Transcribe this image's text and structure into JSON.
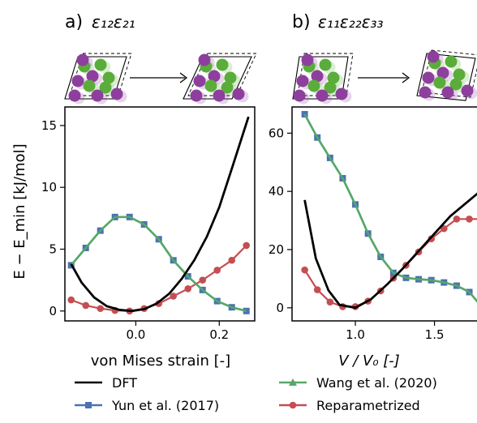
{
  "panels": [
    {
      "title_prefix": "a)",
      "title_math": "ε₁₂ε₂₁",
      "xlabel": "von Mises strain [-]"
    },
    {
      "title_prefix": "b)",
      "title_math": "ε₁₁ε₂₂ε₃₃",
      "xlabel": "V / V₀ [-]"
    }
  ],
  "ylabel": "E − E_min [kJ/mol]",
  "legend": {
    "items": [
      {
        "label": "DFT",
        "color": "#000000",
        "marker": "none"
      },
      {
        "label": "Yun et al. (2017)",
        "color": "#4c72b0",
        "marker": "square"
      },
      {
        "label": "Wang et al. (2020)",
        "color": "#55a868",
        "marker": "triangle"
      },
      {
        "label": "Reparametrized",
        "color": "#c44e52",
        "marker": "circle"
      }
    ]
  },
  "colors": {
    "dft": "#000000",
    "yun": "#4c72b0",
    "wang": "#55a868",
    "repar": "#c44e52",
    "atom_green": "#5aad3a",
    "atom_purple": "#8e3f9e"
  },
  "chart_data": [
    {
      "type": "line",
      "title": "a) ε12ε21",
      "xlabel": "von Mises strain [-]",
      "ylabel": "E − E_min [kJ/mol]",
      "xlim": [
        -0.17,
        0.285
      ],
      "ylim": [
        -0.8,
        16.5
      ],
      "xticks": [
        0.0,
        0.2
      ],
      "yticks": [
        0,
        5,
        10,
        15
      ],
      "grid": false,
      "series": [
        {
          "name": "DFT",
          "x": [
            -0.155,
            -0.13,
            -0.1,
            -0.07,
            -0.04,
            -0.01,
            0.02,
            0.05,
            0.08,
            0.11,
            0.14,
            0.17,
            0.2,
            0.23,
            0.27
          ],
          "y": [
            3.8,
            2.3,
            1.1,
            0.4,
            0.1,
            0.0,
            0.15,
            0.6,
            1.4,
            2.6,
            4.1,
            6.0,
            8.4,
            11.5,
            15.7
          ]
        },
        {
          "name": "Yun et al. (2017)",
          "x": [
            -0.155,
            -0.12,
            -0.085,
            -0.05,
            -0.015,
            0.02,
            0.055,
            0.09,
            0.125,
            0.16,
            0.195,
            0.23,
            0.265
          ],
          "y": [
            3.7,
            5.1,
            6.5,
            7.6,
            7.6,
            7.0,
            5.8,
            4.1,
            2.8,
            1.7,
            0.8,
            0.3,
            0.0
          ]
        },
        {
          "name": "Wang et al. (2020)",
          "x": [
            -0.155,
            -0.12,
            -0.085,
            -0.05,
            -0.015,
            0.02,
            0.055,
            0.09,
            0.125,
            0.16,
            0.195,
            0.23,
            0.265
          ],
          "y": [
            3.7,
            5.1,
            6.5,
            7.6,
            7.6,
            7.0,
            5.8,
            4.1,
            2.8,
            1.7,
            0.8,
            0.3,
            0.0
          ]
        },
        {
          "name": "Reparametrized",
          "x": [
            -0.155,
            -0.12,
            -0.085,
            -0.05,
            -0.015,
            0.02,
            0.055,
            0.09,
            0.125,
            0.16,
            0.195,
            0.23,
            0.265
          ],
          "y": [
            0.9,
            0.45,
            0.2,
            0.05,
            0.0,
            0.2,
            0.6,
            1.2,
            1.8,
            2.5,
            3.3,
            4.1,
            5.3
          ]
        }
      ]
    },
    {
      "type": "line",
      "title": "b) ε11ε22ε33",
      "xlabel": "V / V₀ [-]",
      "ylabel": "",
      "xlim": [
        0.6,
        1.83
      ],
      "ylim": [
        -4.5,
        69
      ],
      "xticks": [
        1.0,
        1.5
      ],
      "yticks": [
        0,
        20,
        40,
        60
      ],
      "grid": false,
      "series": [
        {
          "name": "DFT",
          "x": [
            0.68,
            0.75,
            0.83,
            0.9,
            1.0,
            1.1,
            1.2,
            1.3,
            1.4,
            1.5,
            1.6,
            1.7,
            1.81
          ],
          "y": [
            37,
            17,
            6,
            1,
            0,
            3,
            8,
            13.5,
            19.5,
            25.5,
            31.5,
            36,
            41
          ]
        },
        {
          "name": "Yun et al. (2017)",
          "x": [
            0.68,
            0.76,
            0.84,
            0.92,
            1.0,
            1.08,
            1.16,
            1.24,
            1.32,
            1.4,
            1.48,
            1.56,
            1.64,
            1.72,
            1.8
          ],
          "y": [
            66.5,
            58.5,
            51.5,
            44.5,
            35.5,
            25.5,
            17.5,
            12,
            10.3,
            9.8,
            9.5,
            8.7,
            7.6,
            5.4,
            0.3
          ]
        },
        {
          "name": "Wang et al. (2020)",
          "x": [
            0.68,
            0.76,
            0.84,
            0.92,
            1.0,
            1.08,
            1.16,
            1.24,
            1.32,
            1.4,
            1.48,
            1.56,
            1.64,
            1.72,
            1.8
          ],
          "y": [
            66.5,
            58.5,
            51.5,
            44.5,
            35.5,
            25.5,
            17.5,
            12,
            10.3,
            9.8,
            9.5,
            8.7,
            7.6,
            5.4,
            0.3
          ]
        },
        {
          "name": "Reparametrized",
          "x": [
            0.68,
            0.76,
            0.84,
            0.92,
            1.0,
            1.08,
            1.16,
            1.24,
            1.32,
            1.4,
            1.48,
            1.56,
            1.64,
            1.72,
            1.8
          ],
          "y": [
            13,
            6.2,
            2,
            0.4,
            0.4,
            2.3,
            5.8,
            10.2,
            14.6,
            19.2,
            23.7,
            27.2,
            30.5,
            30.5,
            30.5
          ]
        }
      ]
    }
  ]
}
